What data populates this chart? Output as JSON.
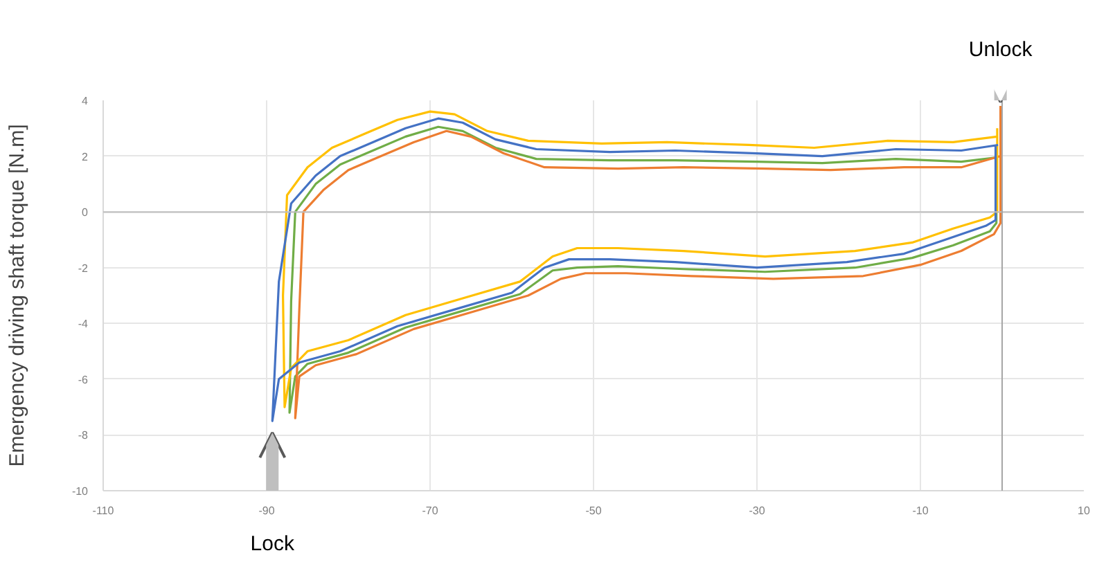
{
  "chart_data": {
    "type": "line",
    "ylabel": "Emergency driving shaft torque [N.m]",
    "xlim": [
      -110,
      10
    ],
    "xticks": [
      -110,
      -90,
      -70,
      -50,
      -30,
      -10,
      10
    ],
    "ylim": [
      -10,
      4
    ],
    "yticks": [
      -10,
      -8,
      -6,
      -4,
      -2,
      0,
      2,
      4
    ],
    "grid": true,
    "ref_lines": [
      {
        "axis": "y",
        "value": 0,
        "color": "#bfbfbf"
      },
      {
        "axis": "x",
        "value": 0,
        "color": "#a6a6a6"
      }
    ],
    "annotations": [
      {
        "text": "Unlock",
        "x": -0.2,
        "y": 3.8
      },
      {
        "text": "Lock",
        "x": -89.3,
        "y": -7.5
      }
    ],
    "series": [
      {
        "color": "#4472c4",
        "x": [
          -0.5,
          -5,
          -13,
          -22,
          -30,
          -40,
          -48,
          -57,
          -62,
          -66,
          -69,
          -73,
          -77,
          -81,
          -84,
          -87,
          -88.5,
          -89.3,
          -88.5,
          -86,
          -81,
          -74,
          -67,
          -60,
          -56,
          -53,
          -48,
          -40,
          -30,
          -19,
          -12,
          -7,
          -2,
          -0.8,
          -0.8
        ],
        "values": [
          2.4,
          2.2,
          2.25,
          2.0,
          2.1,
          2.2,
          2.15,
          2.25,
          2.6,
          3.2,
          3.35,
          3.0,
          2.5,
          2.0,
          1.3,
          0.3,
          -2.5,
          -7.5,
          -6.0,
          -5.4,
          -5.0,
          -4.1,
          -3.5,
          -2.9,
          -2.0,
          -1.7,
          -1.7,
          -1.8,
          -2.0,
          -1.8,
          -1.5,
          -1.0,
          -0.5,
          -0.3,
          2.4
        ]
      },
      {
        "color": "#ffc000",
        "x": [
          -0.6,
          -6,
          -14,
          -23,
          -31,
          -41,
          -49,
          -58,
          -63,
          -67,
          -70,
          -74,
          -78,
          -82,
          -85,
          -87.5,
          -88,
          -87.8,
          -87,
          -85,
          -80,
          -73,
          -66,
          -59,
          -55,
          -52,
          -47,
          -39,
          -29,
          -18,
          -11,
          -6,
          -1.5,
          -0.6,
          -0.6
        ],
        "values": [
          2.7,
          2.5,
          2.55,
          2.3,
          2.4,
          2.5,
          2.45,
          2.55,
          2.9,
          3.5,
          3.6,
          3.3,
          2.8,
          2.3,
          1.6,
          0.6,
          -3.0,
          -7.0,
          -5.6,
          -5.0,
          -4.6,
          -3.7,
          -3.1,
          -2.5,
          -1.6,
          -1.3,
          -1.3,
          -1.4,
          -1.6,
          -1.4,
          -1.1,
          -0.6,
          -0.2,
          0.0,
          3.0
        ]
      },
      {
        "color": "#ed7d31",
        "x": [
          -0.2,
          -5,
          -12,
          -21,
          -29,
          -39,
          -47,
          -56,
          -61,
          -65,
          -68,
          -72,
          -76,
          -80,
          -83,
          -85.5,
          -86,
          -86.5,
          -86,
          -84,
          -79,
          -72,
          -65,
          -58,
          -54,
          -51,
          -46,
          -38,
          -28,
          -17,
          -10,
          -5,
          -1,
          -0.2,
          -0.2
        ],
        "values": [
          2.0,
          1.6,
          1.6,
          1.5,
          1.55,
          1.6,
          1.55,
          1.6,
          2.1,
          2.7,
          2.9,
          2.5,
          2.0,
          1.5,
          0.8,
          0.0,
          -3.5,
          -7.4,
          -5.9,
          -5.5,
          -5.1,
          -4.2,
          -3.6,
          -3.0,
          -2.4,
          -2.2,
          -2.2,
          -2.3,
          -2.4,
          -2.3,
          -1.9,
          -1.4,
          -0.8,
          -0.4,
          3.8
        ]
      },
      {
        "color": "#70ad47",
        "x": [
          -0.7,
          -5,
          -13,
          -22,
          -30,
          -40,
          -48,
          -57,
          -62,
          -66,
          -69,
          -73,
          -77,
          -81,
          -84,
          -86.5,
          -87,
          -87.2,
          -86.5,
          -85,
          -80,
          -73,
          -66,
          -59,
          -55,
          -52,
          -47,
          -39,
          -29,
          -18,
          -11,
          -6,
          -1.5,
          -0.7,
          -0.7
        ],
        "values": [
          1.95,
          1.8,
          1.9,
          1.75,
          1.8,
          1.85,
          1.85,
          1.9,
          2.3,
          2.9,
          3.05,
          2.7,
          2.2,
          1.7,
          1.0,
          0.0,
          -3.2,
          -7.2,
          -5.9,
          -5.45,
          -5.05,
          -4.15,
          -3.55,
          -2.95,
          -2.1,
          -2.0,
          -1.95,
          -2.05,
          -2.15,
          -2.0,
          -1.65,
          -1.2,
          -0.7,
          -0.4,
          2.2
        ]
      }
    ]
  }
}
